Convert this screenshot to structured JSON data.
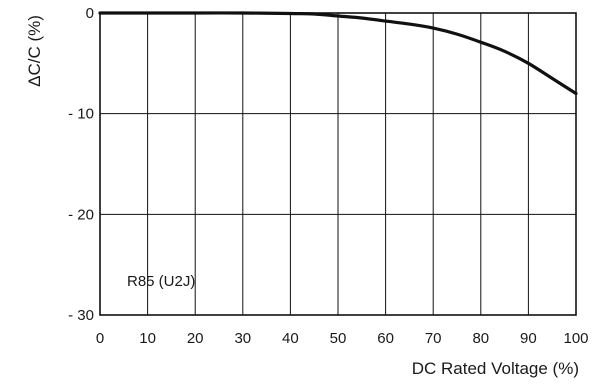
{
  "chart_data": {
    "type": "line",
    "title": "",
    "xlabel": "DC Rated Voltage (%)",
    "ylabel": "ΔC/C (%)",
    "xlim": [
      0,
      100
    ],
    "ylim": [
      -30,
      0
    ],
    "x_ticks": [
      0,
      10,
      20,
      30,
      40,
      50,
      60,
      70,
      80,
      90,
      100
    ],
    "x_tick_labels": [
      "0",
      "10",
      "20",
      "30",
      "40",
      "50",
      "60",
      "70",
      "80",
      "90",
      "100"
    ],
    "y_ticks": [
      0,
      -10,
      -20,
      -30
    ],
    "y_tick_labels": [
      "0",
      "- 10",
      "- 20",
      "- 30"
    ],
    "grid": true,
    "annotations": [
      {
        "text": "R85 (U2J)"
      }
    ],
    "series": [
      {
        "x": [
          0,
          10,
          20,
          30,
          40,
          45,
          50,
          55,
          60,
          65,
          70,
          75,
          80,
          85,
          90,
          95,
          100
        ],
        "y": [
          0,
          0,
          0,
          0,
          -0.05,
          -0.1,
          -0.3,
          -0.5,
          -0.8,
          -1.1,
          -1.5,
          -2.1,
          -2.9,
          -3.8,
          -5.0,
          -6.5,
          -8.0
        ]
      }
    ]
  }
}
